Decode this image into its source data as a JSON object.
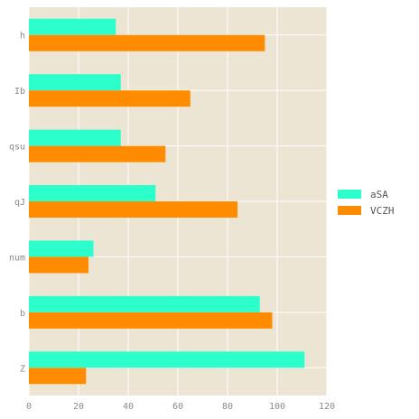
{
  "chart_data": {
    "type": "bar",
    "orientation": "horizontal",
    "categories": [
      "h",
      "Ib",
      "qsu",
      "qJ",
      "num",
      "b",
      "Z"
    ],
    "series": [
      {
        "name": "aSA",
        "values": [
          35,
          37,
          37,
          51,
          26,
          93,
          111
        ],
        "color": "#2dffcc"
      },
      {
        "name": "VCZH",
        "values": [
          95,
          65,
          55,
          84,
          24,
          98,
          23
        ],
        "color": "#ff8c00"
      }
    ],
    "xlim": [
      0,
      120
    ],
    "xticks": [
      0,
      20,
      40,
      60,
      80,
      100,
      120
    ],
    "grid": true,
    "legend_position": "right",
    "background_color": "#ede5d3",
    "grid_color": "#ffffff"
  }
}
